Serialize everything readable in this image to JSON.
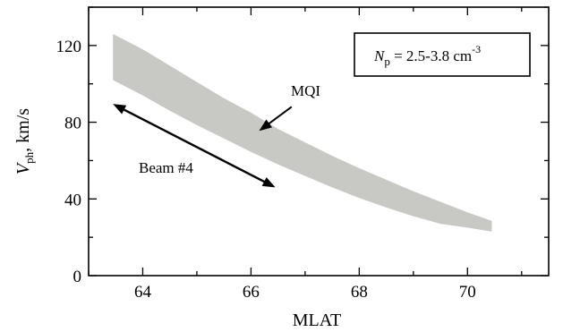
{
  "chart_data": {
    "type": "area",
    "xlabel": "MLAT",
    "ylabel": {
      "symbol": "V",
      "subscript": "ph",
      "rest": ", km/s"
    },
    "xlim": [
      63.0,
      71.5
    ],
    "ylim": [
      0,
      140
    ],
    "xticks": [
      64,
      66,
      68,
      70
    ],
    "yticks": [
      0,
      40,
      80,
      120
    ],
    "grid": false,
    "band": {
      "color": "#c8c8c4",
      "x": [
        63.45,
        64.0,
        64.5,
        65.0,
        65.5,
        66.0,
        66.5,
        67.0,
        67.5,
        68.0,
        68.5,
        69.0,
        69.5,
        70.0,
        70.45
      ],
      "upper": [
        126,
        118,
        109.5,
        101,
        92.5,
        85,
        76.5,
        69.5,
        62.5,
        56,
        50,
        44,
        38.5,
        33,
        28.5
      ],
      "lower": [
        102,
        94,
        86,
        78.5,
        71.5,
        64.5,
        58,
        52,
        46,
        40.5,
        35.5,
        31,
        27,
        25,
        23
      ]
    },
    "legend_box": {
      "symbol": "N",
      "subscript": "p",
      "text": " = 2.5-3.8 cm",
      "superscript": "-3"
    },
    "annotations": [
      {
        "label": "MQI",
        "arrow_from": [
          66.75,
          88
        ],
        "arrow_to": [
          66.15,
          75.5
        ]
      },
      {
        "label": "Beam #4",
        "arrow_from": [
          63.45,
          89.5
        ],
        "arrow_to": [
          66.45,
          46
        ]
      }
    ]
  }
}
